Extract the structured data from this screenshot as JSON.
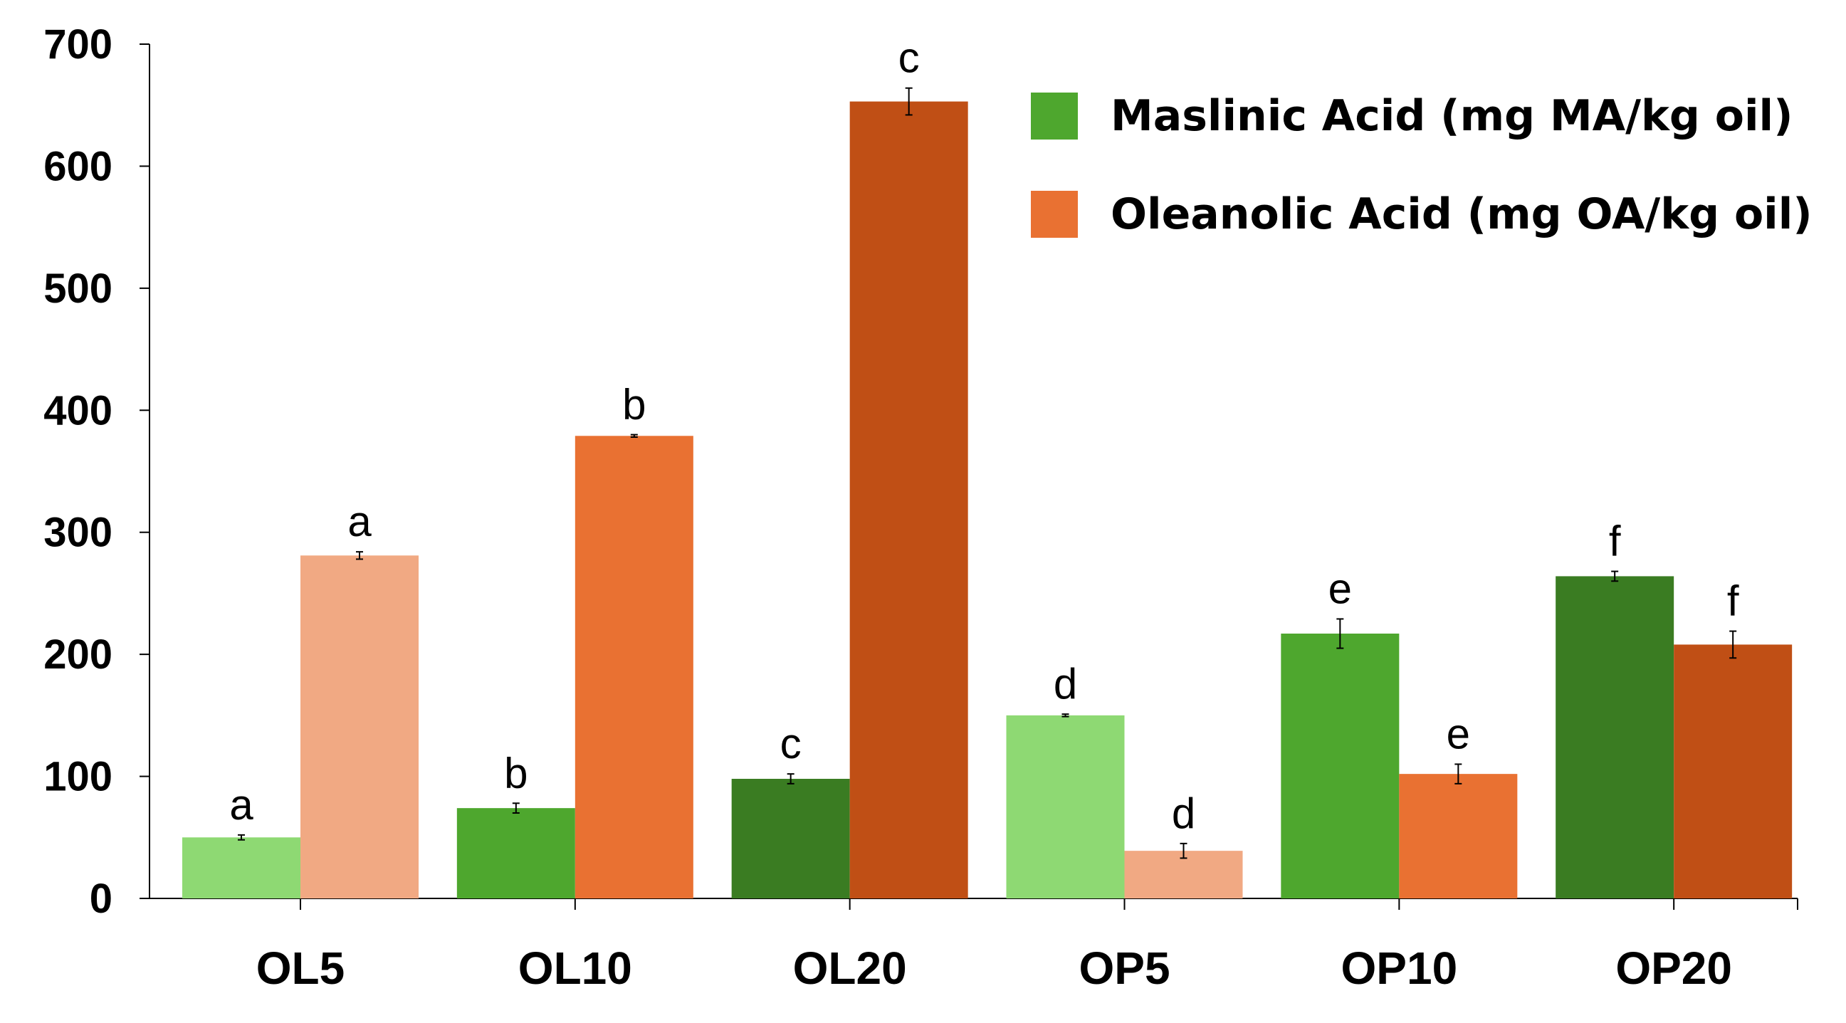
{
  "chart_data": {
    "type": "bar",
    "title": "",
    "xlabel": "",
    "ylabel": "",
    "ylim": [
      0,
      700
    ],
    "yticks": [
      0,
      100,
      200,
      300,
      400,
      500,
      600,
      700
    ],
    "grid": false,
    "legend_position": "top-right",
    "categories": [
      "OL5",
      "OL10",
      "OL20",
      "OP5",
      "OP10",
      "OP20"
    ],
    "series": [
      {
        "name": "Maslinic Acid (mg MA/kg oil)",
        "legend_color": "#4ea72e",
        "values": [
          50,
          74,
          98,
          150,
          217,
          264
        ],
        "errors": [
          2,
          4,
          4,
          1,
          12,
          4
        ],
        "letters": [
          "a",
          "b",
          "c",
          "d",
          "e",
          "f"
        ],
        "colors": [
          "#8ed973",
          "#4ea72e",
          "#3a7c22",
          "#8ed973",
          "#4ea72e",
          "#3a7c22"
        ]
      },
      {
        "name": "Oleanolic Acid (mg OA/kg oil)",
        "legend_color": "#e97132",
        "values": [
          281,
          379,
          653,
          39,
          102,
          208
        ],
        "errors": [
          3,
          1,
          11,
          6,
          8,
          11
        ],
        "letters": [
          "a",
          "b",
          "c",
          "d",
          "e",
          "f"
        ],
        "colors": [
          "#f1a983",
          "#e97132",
          "#c04f15",
          "#f1a983",
          "#e97132",
          "#c04f15"
        ]
      }
    ]
  }
}
